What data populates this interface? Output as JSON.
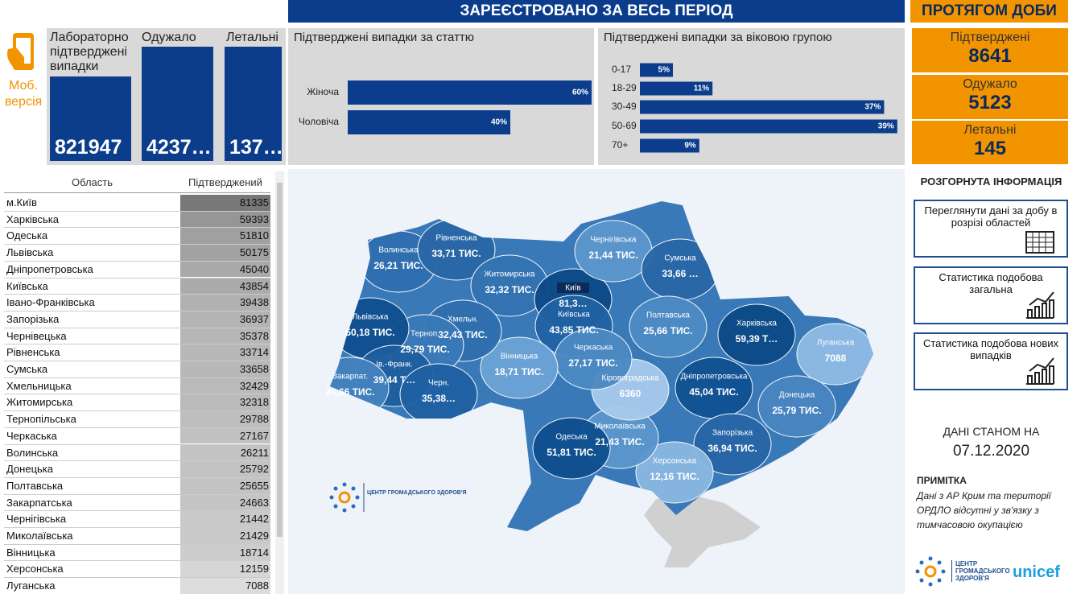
{
  "header": {
    "title": "ЗАРЕЄСТРОВАНО ЗА ВЕСЬ ПЕРІОД",
    "daily_title": "ПРОТЯГОМ ДОБИ"
  },
  "mobile": {
    "label": "Моб. версія"
  },
  "totals": [
    {
      "label": "Лабораторно підтверджені випадки",
      "value": "821947"
    },
    {
      "label": "Одужало",
      "value": "4237…"
    },
    {
      "label": "Летальні",
      "value": "137…"
    }
  ],
  "daily": [
    {
      "label": "Підтверджені",
      "value": 8641
    },
    {
      "label": "Одужало",
      "value": 5123
    },
    {
      "label": "Летальні",
      "value": 145
    }
  ],
  "sex_chart": {
    "type": "bar",
    "title": "Підтверджені випадки за статтю",
    "categories": [
      "Жіноча",
      "Чоловіча"
    ],
    "values": [
      60,
      40
    ],
    "value_labels": [
      "60%",
      "40%"
    ],
    "color": "#0b3d8c"
  },
  "age_chart": {
    "type": "bar",
    "title": "Підтверджені випадки за віковою групою",
    "categories": [
      "0-17",
      "18-29",
      "30-49",
      "50-69",
      "70+"
    ],
    "values": [
      5,
      11,
      37,
      39,
      9
    ],
    "value_labels": [
      "5%",
      "11%",
      "37%",
      "39%",
      "9%"
    ],
    "color": "#0b3d8c"
  },
  "table": {
    "columns": [
      "Область",
      "Підтверджений"
    ],
    "rows": [
      [
        "м.Київ",
        81335
      ],
      [
        "Харківська",
        59393
      ],
      [
        "Одеська",
        51810
      ],
      [
        "Львівська",
        50175
      ],
      [
        "Дніпропетровська",
        45040
      ],
      [
        "Київська",
        43854
      ],
      [
        "Івано-Франківська",
        39438
      ],
      [
        "Запорізька",
        36937
      ],
      [
        "Чернівецька",
        35378
      ],
      [
        "Рівненська",
        33714
      ],
      [
        "Сумська",
        33658
      ],
      [
        "Хмельницька",
        32429
      ],
      [
        "Житомирська",
        32318
      ],
      [
        "Тернопільська",
        29788
      ],
      [
        "Черкаська",
        27167
      ],
      [
        "Волинська",
        26211
      ],
      [
        "Донецька",
        25792
      ],
      [
        "Полтавська",
        25655
      ],
      [
        "Закарпатська",
        24663
      ],
      [
        "Чернігівська",
        21442
      ],
      [
        "Миколаївська",
        21429
      ],
      [
        "Вінницька",
        18714
      ],
      [
        "Херсонська",
        12159
      ],
      [
        "Луганська",
        7088
      ]
    ]
  },
  "map": {
    "regions": [
      {
        "name": "Волинська",
        "value": "26,21 ТИС."
      },
      {
        "name": "Рівненська",
        "value": "33,71 ТИС."
      },
      {
        "name": "Житомирська",
        "value": "32,32 ТИС."
      },
      {
        "name": "Київ",
        "value": "81,3…"
      },
      {
        "name": "Київська",
        "value": "43,85 ТИС."
      },
      {
        "name": "Чернігівська",
        "value": "21,44 ТИС."
      },
      {
        "name": "Сумська",
        "value": "33,66 …"
      },
      {
        "name": "Полтавська",
        "value": "25,66 ТИС."
      },
      {
        "name": "Харківська",
        "value": "59,39 Т…"
      },
      {
        "name": "Луганська",
        "value": "7088"
      },
      {
        "name": "Донецька",
        "value": "25,79 ТИС."
      },
      {
        "name": "Дніпропетровська",
        "value": "45,04 ТИС."
      },
      {
        "name": "Запорізька",
        "value": "36,94 ТИС."
      },
      {
        "name": "Херсонська",
        "value": "12,16 ТИС."
      },
      {
        "name": "Миколаївська",
        "value": "21,43 ТИС."
      },
      {
        "name": "Одеська",
        "value": "51,81 ТИС."
      },
      {
        "name": "Кіровоградська",
        "value": "6360"
      },
      {
        "name": "Черкаська",
        "value": "27,17 ТИС."
      },
      {
        "name": "Вінницька",
        "value": "18,71 ТИС."
      },
      {
        "name": "Хмельн.",
        "value": "32,43 ТИС."
      },
      {
        "name": "Терноп.",
        "value": "29,79 ТИС."
      },
      {
        "name": "Львівська",
        "value": "50,18 ТИС."
      },
      {
        "name": "Ів.-Франк.",
        "value": "39,44 Т…"
      },
      {
        "name": "Закарпат.",
        "value": "24,66 ТИС."
      },
      {
        "name": "Черн.",
        "value": "35,38…"
      }
    ],
    "logo": "ЦЕНТР ГРОМАДСЬКОГО ЗДОРОВ'Я"
  },
  "side": {
    "title": "РОЗГОРНУТА ІНФОРМАЦІЯ",
    "buttons": [
      "Переглянути дані за добу в розрізі областей",
      "Статистика подобова загальна",
      "Статистика подобова нових випадків"
    ],
    "date_label": "ДАНІ СТАНОМ НА",
    "date": "07.12.2020",
    "note_title": "ПРИМІТКА",
    "note": "Дані з АР Крим та території ОРДЛО відсутні у зв'язку з тимчасовою окупацією",
    "logo": "ЦЕНТР ГРОМАДСЬКОГО ЗДОРОВ'Я",
    "unicef": "unicef"
  }
}
